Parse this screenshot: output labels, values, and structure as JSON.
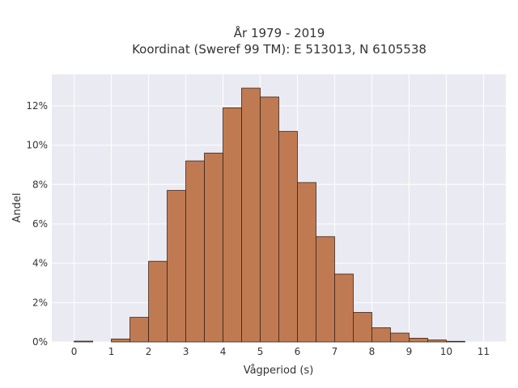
{
  "chart_data": {
    "type": "bar",
    "title": "År 1979 - 2019",
    "subtitle": "Koordinat (Sweref 99 TM): E 513013, N 6105538",
    "xlabel": "Vågperiod (s)",
    "ylabel": "Andel",
    "xlim": [
      -0.6,
      11.6
    ],
    "ylim": [
      0,
      13.6
    ],
    "x_ticks": [
      0,
      1,
      2,
      3,
      4,
      5,
      6,
      7,
      8,
      9,
      10,
      11
    ],
    "x_tick_labels": [
      "0",
      "1",
      "2",
      "3",
      "4",
      "5",
      "6",
      "7",
      "8",
      "9",
      "10",
      "11"
    ],
    "y_ticks": [
      0,
      2,
      4,
      6,
      8,
      10,
      12
    ],
    "y_tick_labels": [
      "0%",
      "2%",
      "4%",
      "6%",
      "8%",
      "10%",
      "12%"
    ],
    "bin_width": 0.5,
    "bin_starts": [
      0,
      1,
      1.5,
      2,
      2.5,
      3,
      3.5,
      4,
      4.5,
      5,
      5.5,
      6,
      6.5,
      7,
      7.5,
      8,
      8.5,
      9,
      9.5,
      10
    ],
    "values": [
      0.04,
      0.15,
      1.25,
      4.1,
      7.7,
      9.2,
      9.6,
      11.9,
      12.9,
      12.45,
      10.7,
      8.1,
      5.35,
      3.45,
      1.5,
      0.72,
      0.45,
      0.19,
      0.1,
      0.03
    ],
    "bar_color": "#c07a52",
    "bar_edge_color": "#3a2419",
    "background_color": "#eaeaf2",
    "grid": true
  }
}
